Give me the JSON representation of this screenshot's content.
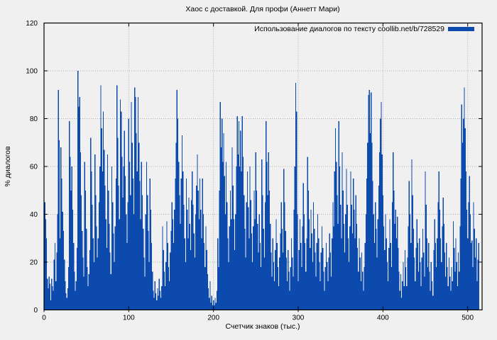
{
  "title": "Хаос с доставкой. Для профи (Аннетт Мари)",
  "legend": {
    "label": "Использование диалогов по тексту coollib.net/b/728529"
  },
  "colors": {
    "background": "#f0f0f0",
    "bar": "#0c4aad",
    "grid": "#b0b0b0",
    "axis": "#000000",
    "text": "#000000"
  },
  "chart_data": {
    "type": "bar",
    "style": "impulses",
    "title": "Хаос с доставкой. Для профи (Аннетт Мари)",
    "xlabel": "Счетчик знаков (тыс.)",
    "ylabel": "% диалогов",
    "xlim": [
      0,
      517
    ],
    "ylim": [
      0,
      120
    ],
    "x_ticks": [
      0,
      100,
      200,
      300,
      400,
      500
    ],
    "y_ticks": [
      0,
      20,
      40,
      60,
      80,
      100,
      120
    ],
    "grid": true,
    "legend_position": "top-right-inside",
    "series": [
      {
        "name": "Использование диалогов по тексту coollib.net/b/728529",
        "color": "#0c4aad",
        "x_start": 0,
        "x_step": 1,
        "values": [
          36,
          45,
          38,
          30,
          13,
          9,
          14,
          11,
          4,
          13,
          10,
          8,
          21,
          28,
          12,
          24,
          40,
          92,
          71,
          30,
          68,
          55,
          41,
          33,
          21,
          12,
          7,
          5,
          9,
          18,
          79,
          64,
          50,
          60,
          42,
          28,
          16,
          8,
          12,
          26,
          100,
          85,
          89,
          66,
          48,
          33,
          22,
          14,
          62,
          50,
          34,
          18,
          10,
          15,
          25,
          72,
          58,
          44,
          30,
          20,
          65,
          48,
          35,
          22,
          30,
          45,
          60,
          94,
          76,
          58,
          83,
          67,
          52,
          38,
          26,
          65,
          50,
          36,
          24,
          15,
          60,
          45,
          32,
          20,
          35,
          55,
          94,
          72,
          52,
          38,
          88,
          83,
          64,
          47,
          60,
          75,
          56,
          40,
          28,
          45,
          80,
          62,
          48,
          87,
          70,
          55,
          40,
          93,
          89,
          74,
          58,
          89,
          70,
          54,
          38,
          62,
          48,
          34,
          22,
          14,
          40,
          62,
          48,
          33,
          20,
          55,
          42,
          28,
          16,
          8,
          5,
          12,
          7,
          4,
          9,
          6,
          13,
          8,
          5,
          10,
          35,
          25,
          16,
          10,
          20,
          37,
          28,
          18,
          12,
          24,
          33,
          45,
          38,
          28,
          42,
          55,
          70,
          92,
          80,
          62,
          48,
          36,
          55,
          73,
          58,
          44,
          30,
          20,
          55,
          42,
          30,
          47,
          36,
          25,
          46,
          58,
          44,
          32,
          22,
          40,
          52,
          65,
          50,
          38,
          55,
          42,
          30,
          55,
          40,
          28,
          18,
          35,
          25,
          15,
          9,
          5,
          12,
          3,
          6,
          2,
          4,
          2,
          5,
          3,
          8,
          30,
          18,
          50,
          87,
          68,
          80,
          62,
          74,
          56,
          40,
          62,
          45,
          30,
          20,
          35,
          50,
          38,
          68,
          52,
          38,
          25,
          40,
          60,
          81,
          65,
          79,
          60,
          75,
          58,
          81,
          64,
          48,
          34,
          22,
          45,
          58,
          43,
          30,
          60,
          46,
          32,
          20,
          35,
          50,
          38,
          66,
          50,
          36,
          24,
          40,
          28,
          18,
          63,
          48,
          34,
          22,
          45,
          79,
          62,
          48,
          66,
          50,
          36,
          24,
          14,
          30,
          20,
          12,
          25,
          38,
          28,
          18,
          10,
          22,
          32,
          45,
          34,
          24,
          59,
          45,
          33,
          22,
          12,
          25,
          16,
          8,
          18,
          30,
          22,
          14,
          42,
          60,
          95,
          83,
          40,
          12,
          25,
          38,
          28,
          18,
          35,
          53,
          40,
          28,
          16,
          30,
          64,
          50,
          38,
          26,
          42,
          32,
          20,
          45,
          34,
          24,
          14,
          28,
          40,
          30,
          20,
          12,
          24,
          35,
          26,
          16,
          8,
          18,
          28,
          20,
          12,
          22,
          32,
          24,
          14,
          30,
          45,
          35,
          58,
          76,
          62,
          48,
          36,
          79,
          60,
          44,
          30,
          66,
          50,
          36,
          24,
          40,
          59,
          44,
          30,
          20,
          35,
          58,
          44,
          32,
          55,
          42,
          30,
          48,
          36,
          26,
          16,
          30,
          22,
          12,
          24,
          16,
          8,
          18,
          28,
          40,
          55,
          70,
          90,
          92,
          74,
          91,
          70,
          54,
          40,
          28,
          45,
          34,
          22,
          38,
          52,
          66,
          80,
          87,
          65,
          48,
          35,
          25,
          40,
          30,
          20,
          12,
          26,
          38,
          28,
          18,
          45,
          66,
          50,
          36,
          42,
          30,
          39,
          26,
          16,
          8,
          15,
          5,
          12,
          20,
          10,
          25,
          18,
          10,
          22,
          35,
          54,
          40,
          28,
          63,
          48,
          34,
          22,
          12,
          26,
          38,
          28,
          16,
          30,
          20,
          10,
          22,
          34,
          24,
          14,
          58,
          44,
          30,
          18,
          28,
          16,
          8,
          20,
          12,
          6,
          25,
          38,
          28,
          18,
          30,
          45,
          58,
          42,
          30,
          20,
          35,
          47,
          36,
          24,
          14,
          28,
          18,
          10,
          22,
          14,
          8,
          18,
          12,
          37,
          26,
          16,
          30,
          20,
          10,
          24,
          16,
          35,
          55,
          86,
          70,
          80,
          93,
          76,
          58,
          42,
          30,
          45,
          56,
          40,
          28,
          29,
          18,
          45,
          34,
          22,
          30,
          12,
          21,
          28
        ]
      }
    ]
  }
}
